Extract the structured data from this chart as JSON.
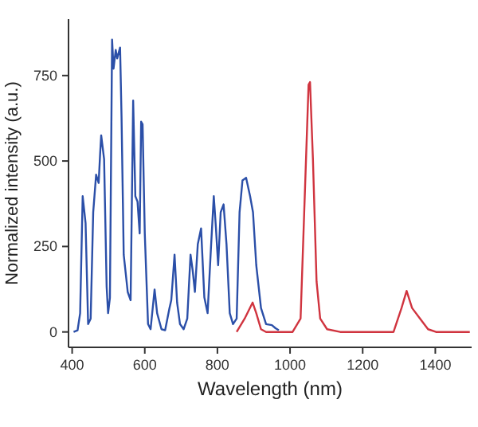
{
  "chart_data": {
    "type": "line",
    "xlabel": "Wavelength (nm)",
    "ylabel": "Normalized intensity (a.u.)",
    "xlim": [
      390,
      1500
    ],
    "ylim": [
      -45,
      915
    ],
    "xticks": [
      400,
      600,
      800,
      1000,
      1200,
      1400
    ],
    "yticks": [
      0,
      250,
      500,
      750
    ],
    "grid": false,
    "marker": "none",
    "series": [
      {
        "color": "#2b4fa8",
        "x": [
          404,
          415,
          422,
          429,
          437,
          444,
          451,
          458,
          466,
          473,
          477,
          480,
          488,
          495,
          499,
          504,
          510,
          514,
          520,
          524,
          532,
          536,
          542,
          553,
          561,
          568,
          574,
          580,
          586,
          590,
          594,
          600,
          609,
          616,
          627,
          634,
          646,
          656,
          668,
          673,
          682,
          689,
          697,
          707,
          717,
          726,
          732,
          738,
          746,
          755,
          764,
          773,
          782,
          790,
          796,
          802,
          809,
          817,
          825,
          834,
          843,
          853,
          861,
          869,
          879,
          890,
          898,
          907,
          920,
          934,
          950,
          960,
          969
        ],
        "values": [
          0,
          5,
          55,
          397,
          318,
          23,
          39,
          350,
          460,
          436,
          520,
          575,
          505,
          132,
          55,
          100,
          855,
          770,
          825,
          800,
          832,
          630,
          226,
          117,
          93,
          677,
          397,
          381,
          288,
          615,
          607,
          288,
          23,
          8,
          124,
          55,
          8,
          5,
          70,
          93,
          226,
          86,
          23,
          8,
          39,
          226,
          179,
          117,
          257,
          303,
          101,
          55,
          241,
          397,
          303,
          195,
          350,
          373,
          257,
          55,
          23,
          39,
          350,
          443,
          451,
          397,
          350,
          195,
          70,
          23,
          20,
          11,
          5
        ]
      },
      {
        "color": "#d0343f",
        "x": [
          853,
          875,
          897,
          907,
          920,
          934,
          1007,
          1029,
          1039,
          1051,
          1055,
          1063,
          1073,
          1083,
          1102,
          1138,
          1285,
          1307,
          1321,
          1336,
          1358,
          1380,
          1402,
          1495
        ],
        "values": [
          0,
          39,
          86,
          55,
          8,
          0,
          0,
          39,
          350,
          723,
          731,
          506,
          148,
          39,
          8,
          0,
          0,
          70,
          120,
          70,
          39,
          8,
          0,
          0
        ]
      }
    ]
  }
}
